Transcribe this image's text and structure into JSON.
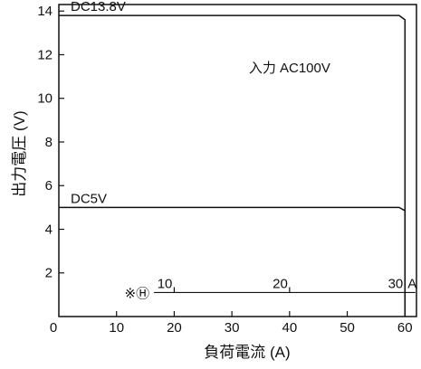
{
  "chart_data": {
    "type": "line",
    "xlabel": "負荷電流 (A)",
    "ylabel": "出力電圧 (V)",
    "xlim": [
      0,
      62
    ],
    "ylim": [
      0,
      14.3
    ],
    "x_ticks": [
      "0",
      "10",
      "20",
      "30",
      "40",
      "50",
      "60"
    ],
    "x_tick_values": [
      0,
      10,
      20,
      30,
      40,
      50,
      60
    ],
    "y_ticks": [
      "2",
      "4",
      "6",
      "8",
      "10",
      "12",
      "14"
    ],
    "y_tick_values": [
      2,
      4,
      6,
      8,
      10,
      12,
      14
    ],
    "grid": false,
    "series": [
      {
        "name": "DC13.8V",
        "x": [
          0,
          59,
          60,
          60
        ],
        "y": [
          13.8,
          13.8,
          13.6,
          0
        ]
      },
      {
        "name": "DC5V",
        "x": [
          0,
          59,
          60,
          60
        ],
        "y": [
          5.0,
          5.0,
          4.85,
          0
        ]
      }
    ],
    "annotations": {
      "input_label": "入力 AC100V",
      "input_at": [
        40,
        11.2
      ],
      "secondary_marker": "※Ⓗ",
      "secondary_axis": {
        "y": 1.1,
        "x_start": 16.5,
        "x_end": 61.8,
        "ticks": [
          "10",
          "20",
          "30"
        ],
        "tick_positions": [
          20,
          40,
          60
        ],
        "unit": "A"
      }
    },
    "line_color": "#111111"
  }
}
